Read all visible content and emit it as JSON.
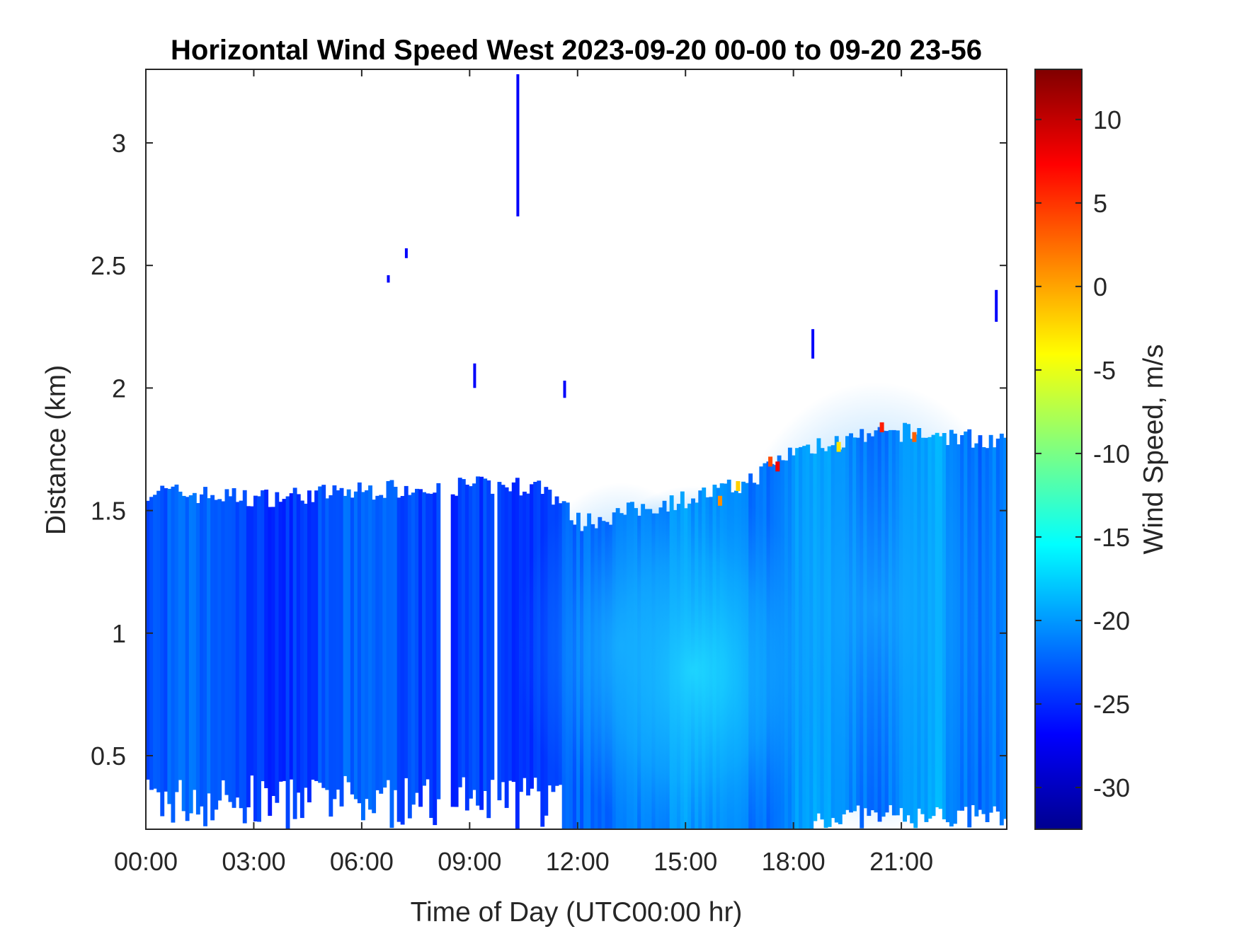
{
  "chart_data": {
    "type": "heatmap",
    "title": "Horizontal Wind Speed West 2023-09-20 00-00 to 09-20 23-56",
    "xlabel": "Time of Day (UTC00:00 hr)",
    "ylabel": "Distance (km)",
    "colorbar_label": "Wind Speed, m/s",
    "x_ticks": [
      "00:00",
      "03:00",
      "06:00",
      "09:00",
      "12:00",
      "15:00",
      "18:00",
      "21:00"
    ],
    "x_tick_hours": [
      0,
      3,
      6,
      9,
      12,
      15,
      18,
      21
    ],
    "xlim_hours": [
      0,
      23.93
    ],
    "y_ticks": [
      "0.5",
      "1",
      "1.5",
      "2",
      "2.5",
      "3"
    ],
    "y_tick_values": [
      0.5,
      1,
      1.5,
      2,
      2.5,
      3
    ],
    "ylim_km": [
      0.2,
      3.3
    ],
    "colorbar_ticks": [
      "10",
      "5",
      "0",
      "-5",
      "-10",
      "-15",
      "-20",
      "-25",
      "-30"
    ],
    "colorbar_tick_values": [
      10,
      5,
      0,
      -5,
      -10,
      -15,
      -20,
      -25,
      -30
    ],
    "clim": [
      -32.5,
      13
    ],
    "colormap": "jet",
    "top_of_data_km": [
      [
        0,
        1.58
      ],
      [
        3,
        1.55
      ],
      [
        6,
        1.58
      ],
      [
        8,
        1.6
      ],
      [
        9.5,
        1.6
      ],
      [
        11,
        1.6
      ],
      [
        12,
        1.45
      ],
      [
        15,
        1.55
      ],
      [
        16.5,
        1.6
      ],
      [
        18,
        1.75
      ],
      [
        21,
        1.82
      ],
      [
        23.93,
        1.78
      ]
    ],
    "isolated_echoes": [
      {
        "hour": 10.3,
        "km_from": 2.7,
        "km_to": 3.28
      },
      {
        "hour": 6.7,
        "km_from": 2.43,
        "km_to": 2.46
      },
      {
        "hour": 7.2,
        "km_from": 2.53,
        "km_to": 2.57
      },
      {
        "hour": 9.1,
        "km_from": 2.0,
        "km_to": 2.1
      },
      {
        "hour": 11.6,
        "km_from": 1.96,
        "km_to": 2.03
      },
      {
        "hour": 18.5,
        "km_from": 2.12,
        "km_to": 2.24
      },
      {
        "hour": 23.6,
        "km_from": 2.27,
        "km_to": 2.4
      }
    ]
  }
}
